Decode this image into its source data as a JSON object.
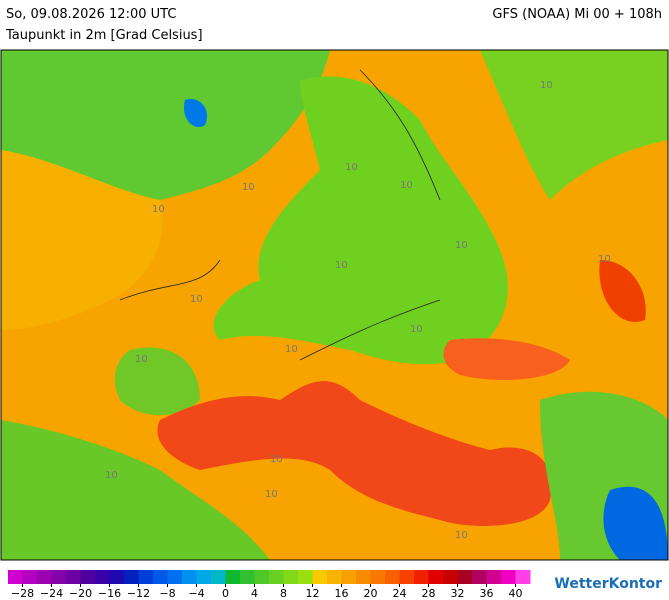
{
  "header": {
    "title": "So, 09.08.2026 12:00 UTC",
    "subtitle": "Taupunkt in 2m [Grad Celsius]",
    "model": "GFS (NOAA) Mi 00 + 108h"
  },
  "map": {
    "contour_labels": [
      "10",
      "10",
      "10",
      "10",
      "10",
      "10",
      "10",
      "10",
      "10",
      "10",
      "10",
      "10",
      "10",
      "10",
      "10",
      "10"
    ]
  },
  "legend": {
    "lim": [
      -30,
      42
    ],
    "colors": [
      "#d000d0",
      "#b400c0",
      "#9c00b0",
      "#8400a8",
      "#6c00a0",
      "#5000a0",
      "#3800a8",
      "#2008b0",
      "#0020c0",
      "#0040d8",
      "#0058e8",
      "#0070f0",
      "#0090f0",
      "#00a8e8",
      "#00b8c8",
      "#10b830",
      "#30c030",
      "#50c828",
      "#68d020",
      "#80d818",
      "#98e010",
      "#f8c800",
      "#f8b400",
      "#f8a000",
      "#f88c00",
      "#f87800",
      "#f86000",
      "#f84000",
      "#f02000",
      "#e00000",
      "#c80000",
      "#a80020",
      "#b00060",
      "#d00090",
      "#f000c0",
      "#ff40e8"
    ],
    "ticks": [
      {
        "value": -28,
        "label": "−28"
      },
      {
        "value": -24,
        "label": "−24"
      },
      {
        "value": -20,
        "label": "−20"
      },
      {
        "value": -16,
        "label": "−16"
      },
      {
        "value": -12,
        "label": "−12"
      },
      {
        "value": -8,
        "label": "−8"
      },
      {
        "value": -4,
        "label": "−4"
      },
      0,
      4,
      8,
      12,
      16,
      20,
      24,
      28,
      32,
      36,
      40
    ]
  },
  "logo": "WetterKontor"
}
